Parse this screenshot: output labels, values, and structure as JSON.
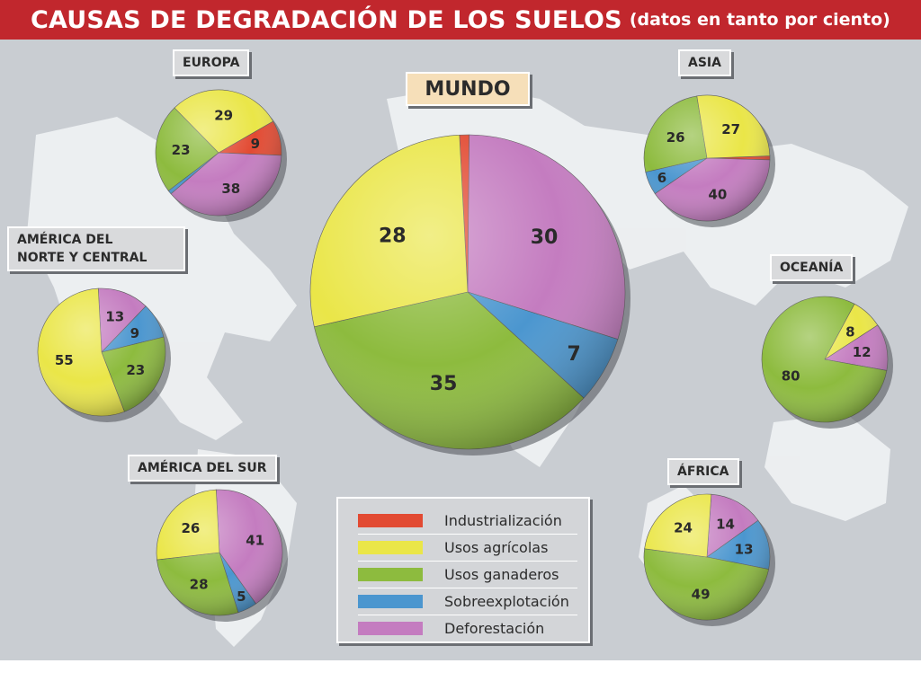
{
  "title": {
    "main": "CAUSAS DE DEGRADACIÓN DE LOS SUELOS",
    "sub": "(datos en tanto por ciento)"
  },
  "colors": {
    "industrializacion": "#e24a32",
    "agricolas": "#eae648",
    "ganaderos": "#8dbb3e",
    "sobreexplotacion": "#4b96cf",
    "deforestacion": "#c47cc0"
  },
  "legend": [
    {
      "key": "industrializacion",
      "label": "Industrialización"
    },
    {
      "key": "agricolas",
      "label": "Usos agrícolas"
    },
    {
      "key": "ganaderos",
      "label": "Usos ganaderos"
    },
    {
      "key": "sobreexplotacion",
      "label": "Sobreexplotación"
    },
    {
      "key": "deforestacion",
      "label": "Deforestación"
    }
  ],
  "chart_data": [
    {
      "type": "pie",
      "id": "mundo",
      "title": "MUNDO",
      "categories": [
        "Industrialización",
        "Usos agrícolas",
        "Usos ganaderos",
        "Sobreexplotación",
        "Deforestación"
      ],
      "values": [
        1,
        28,
        35,
        7,
        30
      ],
      "labels": [
        "",
        "28",
        "35",
        "7",
        "30"
      ]
    },
    {
      "type": "pie",
      "id": "europa",
      "title": "EUROPA",
      "categories": [
        "Industrialización",
        "Usos agrícolas",
        "Usos ganaderos",
        "Sobreexplotación",
        "Deforestación"
      ],
      "values": [
        9,
        29,
        23,
        1,
        38
      ],
      "labels": [
        "9",
        "29",
        "23",
        "",
        "38"
      ]
    },
    {
      "type": "pie",
      "id": "asia",
      "title": "ASIA",
      "categories": [
        "Industrialización",
        "Usos agrícolas",
        "Usos ganaderos",
        "Sobreexplotación",
        "Deforestación"
      ],
      "values": [
        1,
        27,
        26,
        6,
        40
      ],
      "labels": [
        "",
        "27",
        "26",
        "6",
        "40"
      ]
    },
    {
      "type": "pie",
      "id": "america-norte",
      "title": "AMÉRICA DEL\nNORTE Y CENTRAL",
      "categories": [
        "Industrialización",
        "Usos agrícolas",
        "Usos ganaderos",
        "Sobreexplotación",
        "Deforestación"
      ],
      "values": [
        0,
        55,
        23,
        9,
        13
      ],
      "labels": [
        "",
        "55",
        "23",
        "9",
        "13"
      ]
    },
    {
      "type": "pie",
      "id": "oceania",
      "title": "OCEANÍA",
      "categories": [
        "Industrialización",
        "Usos agrícolas",
        "Usos ganaderos",
        "Sobreexplotación",
        "Deforestación"
      ],
      "values": [
        0,
        8,
        80,
        0,
        12
      ],
      "labels": [
        "",
        "8",
        "80",
        "",
        "12"
      ]
    },
    {
      "type": "pie",
      "id": "america-sur",
      "title": "AMÉRICA DEL SUR",
      "categories": [
        "Industrialización",
        "Usos agrícolas",
        "Usos ganaderos",
        "Sobreexplotación",
        "Deforestación"
      ],
      "values": [
        0,
        26,
        28,
        5,
        41
      ],
      "labels": [
        "",
        "26",
        "28",
        "5",
        "41"
      ]
    },
    {
      "type": "pie",
      "id": "africa",
      "title": "ÁFRICA",
      "categories": [
        "Industrialización",
        "Usos agrícolas",
        "Usos ganaderos",
        "Sobreexplotación",
        "Deforestación"
      ],
      "values": [
        0,
        24,
        49,
        13,
        14
      ],
      "labels": [
        "",
        "24",
        "49",
        "13",
        "14"
      ]
    }
  ]
}
